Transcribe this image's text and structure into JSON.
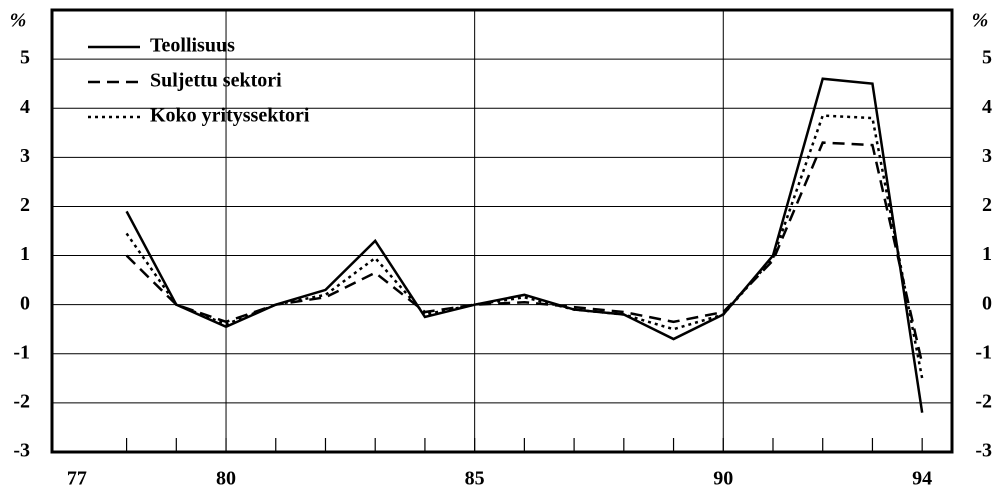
{
  "chart_data": {
    "type": "line",
    "y_label": "%",
    "x": [
      78,
      79,
      80,
      81,
      82,
      83,
      84,
      85,
      86,
      87,
      88,
      89,
      90,
      91,
      92,
      93,
      94
    ],
    "series": [
      {
        "name": "Teollisuus",
        "color": "#000000",
        "dash": "solid",
        "values": [
          1.9,
          0.0,
          -0.45,
          0.0,
          0.3,
          1.3,
          -0.25,
          0.0,
          0.2,
          -0.1,
          -0.2,
          -0.7,
          -0.2,
          1.0,
          4.6,
          4.5,
          -2.2
        ]
      },
      {
        "name": "Suljettu sektori",
        "color": "#000000",
        "dash": "dashed",
        "values": [
          1.0,
          0.0,
          -0.35,
          0.0,
          0.15,
          0.65,
          -0.15,
          0.0,
          0.05,
          -0.05,
          -0.15,
          -0.35,
          -0.15,
          0.9,
          3.3,
          3.25,
          -1.2
        ]
      },
      {
        "name": "Koko yrityssektori",
        "color": "#000000",
        "dash": "dotted",
        "values": [
          1.45,
          0.0,
          -0.4,
          0.0,
          0.2,
          0.95,
          -0.2,
          0.0,
          0.15,
          -0.1,
          -0.2,
          -0.5,
          -0.2,
          0.95,
          3.85,
          3.8,
          -1.5
        ]
      }
    ],
    "xlim": [
      76.5,
      94.6
    ],
    "xticks": [
      77,
      80,
      85,
      90,
      94
    ],
    "ylim": [
      -3,
      6
    ],
    "yticks": [
      -3,
      -2,
      -1,
      0,
      1,
      2,
      3,
      4,
      5
    ],
    "grid": true,
    "legend": "upper left"
  }
}
